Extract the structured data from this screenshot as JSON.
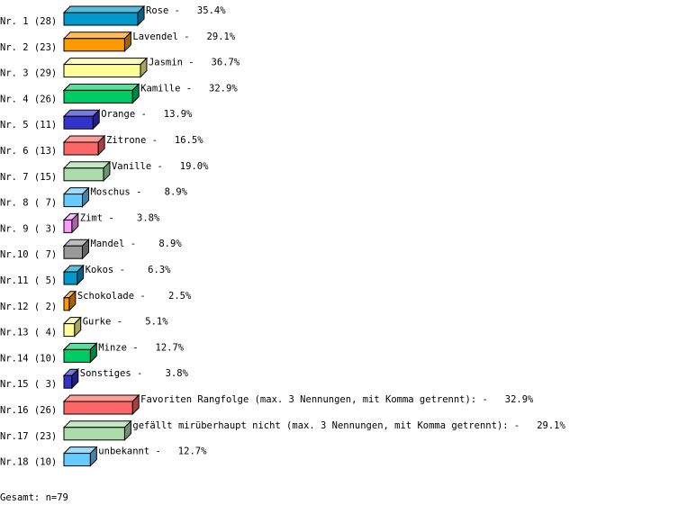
{
  "chart_data": {
    "type": "bar",
    "orientation": "horizontal",
    "style": "3d",
    "rows": [
      {
        "rank": "Nr. 1",
        "count": 28,
        "label": "Rose",
        "percent": "35.4%",
        "color": "#0099cc"
      },
      {
        "rank": "Nr. 2",
        "count": 23,
        "label": "Lavendel",
        "percent": "29.1%",
        "color": "#ff9900"
      },
      {
        "rank": "Nr. 3",
        "count": 29,
        "label": "Jasmin",
        "percent": "36.7%",
        "color": "#ffff99"
      },
      {
        "rank": "Nr. 4",
        "count": 26,
        "label": "Kamille",
        "percent": "32.9%",
        "color": "#00cc66"
      },
      {
        "rank": "Nr. 5",
        "count": 11,
        "label": "Orange",
        "percent": "13.9%",
        "color": "#3333cc"
      },
      {
        "rank": "Nr. 6",
        "count": 13,
        "label": "Zitrone",
        "percent": "16.5%",
        "color": "#ff6666"
      },
      {
        "rank": "Nr. 7",
        "count": 15,
        "label": "Vanille",
        "percent": "19.0%",
        "color": "#aaddaa"
      },
      {
        "rank": "Nr. 8",
        "count": 7,
        "label": "Moschus",
        "percent": "8.9%",
        "color": "#66ccff"
      },
      {
        "rank": "Nr. 9",
        "count": 3,
        "label": "Zimt",
        "percent": "3.8%",
        "color": "#ff99ff"
      },
      {
        "rank": "Nr.10",
        "count": 7,
        "label": "Mandel",
        "percent": "8.9%",
        "color": "#999999"
      },
      {
        "rank": "Nr.11",
        "count": 5,
        "label": "Kokos",
        "percent": "6.3%",
        "color": "#0099cc"
      },
      {
        "rank": "Nr.12",
        "count": 2,
        "label": "Schokolade",
        "percent": "2.5%",
        "color": "#ff9900"
      },
      {
        "rank": "Nr.13",
        "count": 4,
        "label": "Gurke",
        "percent": "5.1%",
        "color": "#ffff99"
      },
      {
        "rank": "Nr.14",
        "count": 10,
        "label": "Minze",
        "percent": "12.7%",
        "color": "#00cc66"
      },
      {
        "rank": "Nr.15",
        "count": 3,
        "label": "Sonstiges",
        "percent": "3.8%",
        "color": "#3333cc"
      },
      {
        "rank": "Nr.16",
        "count": 26,
        "label": "Favoriten Rangfolge (max. 3 Nennungen, mit Komma getrennt):",
        "percent": "32.9%",
        "color": "#ff6666"
      },
      {
        "rank": "Nr.17",
        "count": 23,
        "label": "gefällt mirüberhaupt nicht (max. 3 Nennungen, mit Komma getrennt):",
        "percent": "29.1%",
        "color": "#aaddaa"
      },
      {
        "rank": "Nr.18",
        "count": 10,
        "label": "unbekannt",
        "percent": "12.7%",
        "color": "#66ccff"
      }
    ],
    "total_label": "Gesamt: n=79"
  }
}
